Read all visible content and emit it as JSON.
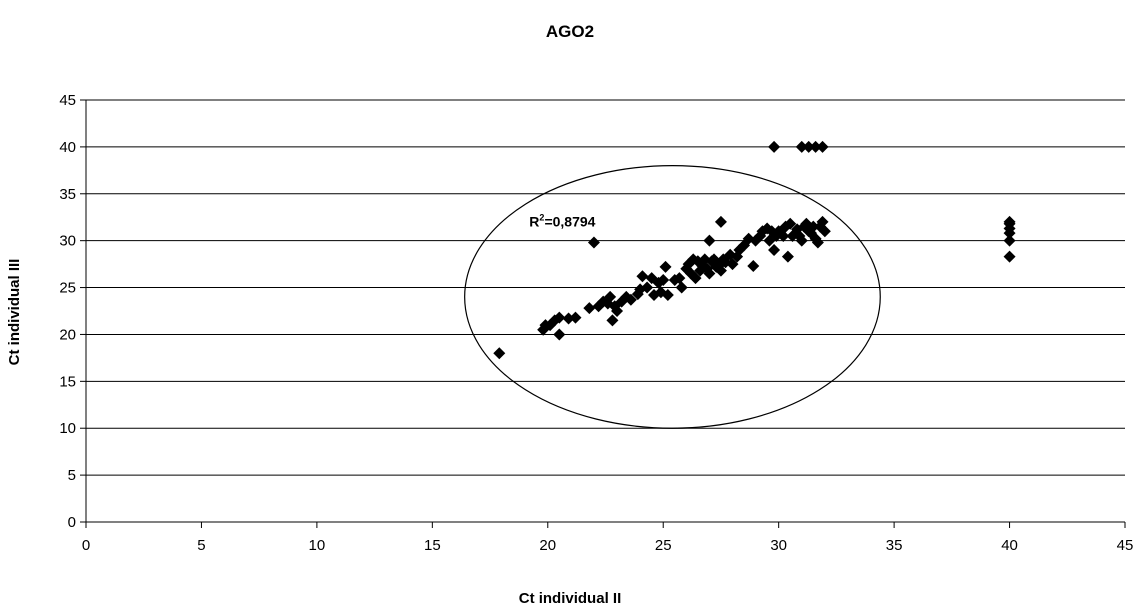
{
  "chart_data": {
    "type": "scatter",
    "title": "AGO2",
    "xlabel": "Ct individual II",
    "ylabel": "Ct individual III",
    "xlim": [
      0,
      45
    ],
    "ylim": [
      0,
      45
    ],
    "xticks": [
      0,
      5,
      10,
      15,
      20,
      25,
      30,
      35,
      40,
      45
    ],
    "yticks": [
      0,
      5,
      10,
      15,
      20,
      25,
      30,
      35,
      40,
      45
    ],
    "grid": "horizontal",
    "legend": "none",
    "marker": "diamond",
    "marker_color": "#000000",
    "annotation": {
      "prefix": "R",
      "sup": "2",
      "value": "=0,8794",
      "x": 19.2,
      "y": 31.5
    },
    "ellipse": {
      "cx": 25.4,
      "cy": 24,
      "rx": 9,
      "ry": 14
    },
    "points": [
      [
        17.9,
        18
      ],
      [
        19.8,
        20.5
      ],
      [
        19.9,
        21
      ],
      [
        20.1,
        21
      ],
      [
        20.3,
        21.5
      ],
      [
        20.5,
        21.8
      ],
      [
        20.5,
        20
      ],
      [
        20.9,
        21.7
      ],
      [
        21.2,
        21.8
      ],
      [
        21.8,
        22.8
      ],
      [
        22.2,
        23
      ],
      [
        22.4,
        23.5
      ],
      [
        22.6,
        23.3
      ],
      [
        22.7,
        24
      ],
      [
        22.8,
        21.5
      ],
      [
        22.9,
        23
      ],
      [
        23.0,
        22.5
      ],
      [
        23.2,
        23.5
      ],
      [
        23.4,
        24
      ],
      [
        23.6,
        23.7
      ],
      [
        23.9,
        24.3
      ],
      [
        24.0,
        24.8
      ],
      [
        24.1,
        26.2
      ],
      [
        24.3,
        25
      ],
      [
        24.5,
        26
      ],
      [
        24.6,
        24.2
      ],
      [
        24.8,
        25.5
      ],
      [
        24.9,
        24.5
      ],
      [
        25.0,
        25.8
      ],
      [
        25.1,
        27.2
      ],
      [
        25.2,
        24.2
      ],
      [
        25.5,
        25.8
      ],
      [
        25.7,
        26
      ],
      [
        25.8,
        25
      ],
      [
        26.0,
        27
      ],
      [
        26.1,
        27.5
      ],
      [
        26.2,
        26.5
      ],
      [
        26.3,
        28
      ],
      [
        26.4,
        26
      ],
      [
        26.5,
        27.8
      ],
      [
        26.6,
        26.8
      ],
      [
        26.7,
        27.3
      ],
      [
        26.8,
        28
      ],
      [
        26.9,
        27
      ],
      [
        27.0,
        26.5
      ],
      [
        27.1,
        27.8
      ],
      [
        27.2,
        28
      ],
      [
        27.3,
        27.2
      ],
      [
        27.4,
        27.3
      ],
      [
        27.5,
        26.8
      ],
      [
        27.6,
        28
      ],
      [
        27.7,
        27.7
      ],
      [
        27.9,
        28.5
      ],
      [
        28.0,
        27.5
      ],
      [
        28.2,
        28.3
      ],
      [
        28.3,
        29
      ],
      [
        28.5,
        29.5
      ],
      [
        28.7,
        30.2
      ],
      [
        28.9,
        27.3
      ],
      [
        29.0,
        30
      ],
      [
        29.2,
        30.5
      ],
      [
        29.3,
        31
      ],
      [
        29.5,
        31.3
      ],
      [
        29.6,
        30
      ],
      [
        29.7,
        31
      ],
      [
        29.8,
        29
      ],
      [
        29.9,
        30.5
      ],
      [
        30.0,
        31
      ],
      [
        30.2,
        30.5
      ],
      [
        30.3,
        31.5
      ],
      [
        30.4,
        28.3
      ],
      [
        30.5,
        31.8
      ],
      [
        30.6,
        30.5
      ],
      [
        30.8,
        31.2
      ],
      [
        30.9,
        30.5
      ],
      [
        31.0,
        30
      ],
      [
        31.1,
        31.5
      ],
      [
        31.2,
        31.8
      ],
      [
        31.3,
        31
      ],
      [
        31.4,
        30.8
      ],
      [
        31.5,
        31.5
      ],
      [
        31.6,
        30.2
      ],
      [
        31.7,
        29.8
      ],
      [
        31.8,
        31.5
      ],
      [
        31.9,
        32
      ],
      [
        32.0,
        31
      ],
      [
        27.0,
        30
      ],
      [
        27.5,
        32
      ],
      [
        22.0,
        29.8
      ],
      [
        29.8,
        40
      ],
      [
        31.0,
        40
      ],
      [
        31.3,
        40
      ],
      [
        31.6,
        40
      ],
      [
        31.9,
        40
      ],
      [
        40.0,
        28.3
      ],
      [
        40.0,
        30
      ],
      [
        40.0,
        30.8
      ],
      [
        40.0,
        31.3
      ],
      [
        40.0,
        31.8
      ],
      [
        40.0,
        32
      ]
    ]
  }
}
